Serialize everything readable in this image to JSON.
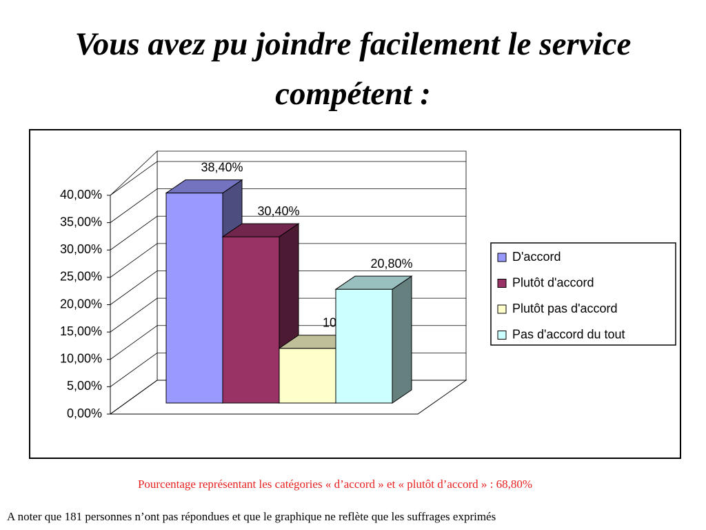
{
  "chart_data": {
    "type": "bar3d",
    "title": "Vous avez pu joindre facilement le service compétent :",
    "categories": [
      null
    ],
    "series": [
      {
        "name": "D'accord",
        "color": "#9999ff",
        "values": [
          38.4
        ],
        "value_labels": [
          "38,40%"
        ]
      },
      {
        "name": "Plutôt d'accord",
        "color": "#993366",
        "values": [
          30.4
        ],
        "value_labels": [
          "30,40%"
        ]
      },
      {
        "name": "Plutôt pas d'accord",
        "color": "#ffffcc",
        "values": [
          10
        ],
        "value_labels": [
          "10%"
        ]
      },
      {
        "name": "Pas d'accord du tout",
        "color": "#ccffff",
        "values": [
          20.8
        ],
        "value_labels": [
          "20,80%"
        ]
      }
    ],
    "ylim": [
      0,
      40
    ],
    "yticks": [
      {
        "value": 0,
        "label": "0,00%"
      },
      {
        "value": 5,
        "label": "5,00%"
      },
      {
        "value": 10,
        "label": "10,00%"
      },
      {
        "value": 15,
        "label": "15,00%"
      },
      {
        "value": 20,
        "label": "20,00%"
      },
      {
        "value": 25,
        "label": "25,00%"
      },
      {
        "value": 30,
        "label": "30,00%"
      },
      {
        "value": 35,
        "label": "35,00%"
      },
      {
        "value": 40,
        "label": "40,00%"
      }
    ],
    "grid": true,
    "legend": "right",
    "annotations": [
      "Pourcentage représentant les catégories « d’accord » et « plutôt d’accord » : 68,80%",
      "A noter que 181 personnes n’ont pas répondues et que le graphique ne reflète que les suffrages exprimés"
    ]
  }
}
